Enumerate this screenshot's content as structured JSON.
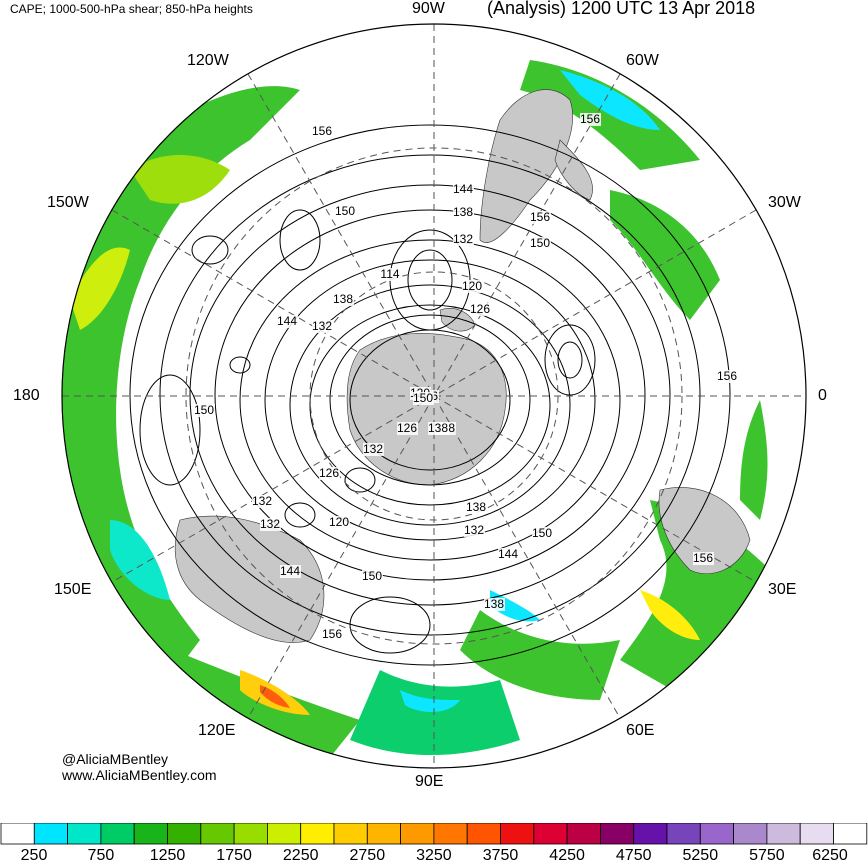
{
  "header": {
    "left": "CAPE; 1000-500-hPa shear; 850-hPa heights",
    "right": "(Analysis) 1200 UTC 13 Apr 2018"
  },
  "longitude_labels": {
    "top": "90W",
    "upper_left": "120W",
    "upper_right": "60W",
    "left_upper": "150W",
    "right_upper": "30W",
    "left": "180",
    "right": "0",
    "left_lower": "150E",
    "right_lower": "30E",
    "lower_left": "120E",
    "lower_right": "60E",
    "bottom": "90E"
  },
  "contour_labels": [
    "156",
    "150",
    "144",
    "138",
    "132",
    "114",
    "120",
    "138",
    "144",
    "132",
    "126",
    "150",
    "156",
    "156",
    "150",
    "126",
    "138",
    "120",
    "126",
    "132",
    "138",
    "132",
    "120",
    "126",
    "132",
    "144",
    "150",
    "156",
    "138",
    "132",
    "144",
    "150",
    "156",
    "156",
    "150",
    "138"
  ],
  "credits": {
    "handle": "@AliciaMBentley",
    "website": "www.AliciaMBentley.com"
  },
  "colorbar": {
    "tick_labels": [
      "250",
      "750",
      "1250",
      "1750",
      "2250",
      "2750",
      "3250",
      "3750",
      "4250",
      "4750",
      "5250",
      "5750",
      "6250"
    ],
    "colors": [
      "#ffffff",
      "#00e5ff",
      "#00e6c8",
      "#00cc66",
      "#19b419",
      "#33b000",
      "#66c800",
      "#99dd00",
      "#ccee00",
      "#ffee00",
      "#ffcc00",
      "#ffb400",
      "#ff9900",
      "#ff7700",
      "#ff5500",
      "#ee1111",
      "#dd0033",
      "#bb0044",
      "#880066",
      "#6611aa",
      "#7744bb",
      "#9966cc",
      "#aa88cc",
      "#ccbbdd",
      "#e8ddf0",
      "#ffffff"
    ]
  }
}
